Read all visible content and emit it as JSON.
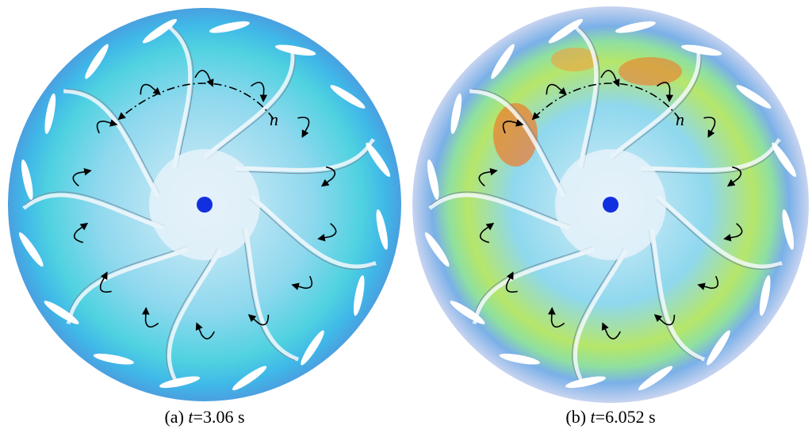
{
  "panels": [
    {
      "caption_label": "(a)",
      "caption_var": "t",
      "caption_value": "=3.06 s",
      "rotation_label": "n"
    },
    {
      "caption_label": "(b)",
      "caption_var": "t",
      "caption_value": "=6.052 s",
      "rotation_label": "n"
    }
  ]
}
